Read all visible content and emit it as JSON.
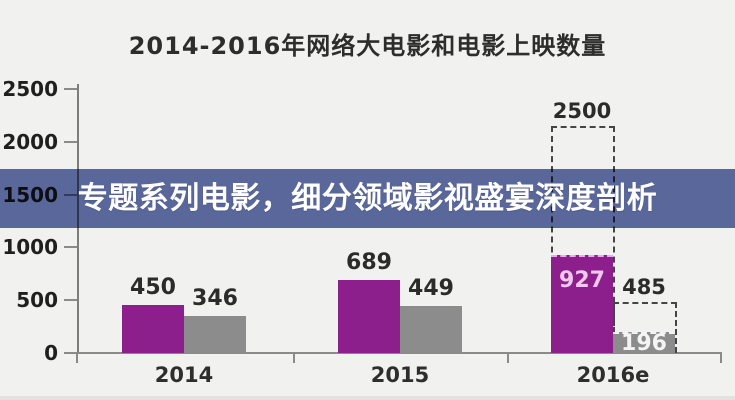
{
  "chart_data": {
    "type": "bar",
    "title": "2014-2016年网络大电影和电影上映数量",
    "categories": [
      "2014",
      "2015",
      "2016e"
    ],
    "series": [
      {
        "color": "#8d1f8d",
        "values": [
          450,
          689,
          927
        ],
        "inside_label_color": "#eec9ec",
        "dash_over_color": "#edaae9"
      },
      {
        "color": "#8c8c8c",
        "values": [
          346,
          449,
          196
        ],
        "inside_label_color": "#f4f4f4",
        "dash_over_color": "#f2f2f2"
      }
    ],
    "projections": [
      {
        "category_index": 2,
        "series_index": 0,
        "value": 2500,
        "label": "2500"
      },
      {
        "category_index": 2,
        "series_index": 1,
        "value": 485,
        "label": "485"
      }
    ],
    "yticks": [
      "0",
      "500",
      "1000",
      "1500",
      "2000",
      "2500"
    ],
    "ylim": [
      0,
      2500
    ],
    "grid": false,
    "legend": "none",
    "axis_color": "#8a8a8a",
    "dashed_box_color": "#454545",
    "label_color": "#2b2b2b",
    "background": "#f1f1ef"
  },
  "overlay_banner": {
    "text": "专题系列电影，细分领域影视盛宴深度剖析",
    "background": "#5e6da5",
    "text_color": "#ffffff"
  }
}
